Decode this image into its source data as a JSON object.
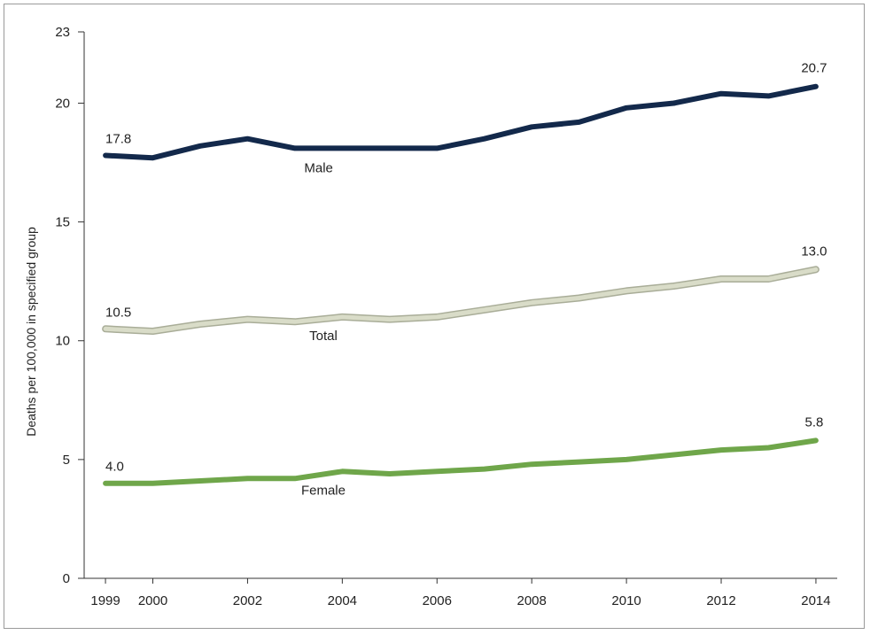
{
  "chart_data": {
    "type": "line",
    "xlabel": "",
    "ylabel": "Deaths per 100,000 in specified group",
    "x": [
      1999,
      2000,
      2001,
      2002,
      2003,
      2004,
      2005,
      2006,
      2007,
      2008,
      2009,
      2010,
      2011,
      2012,
      2013,
      2014
    ],
    "xticks": [
      "1999",
      "2000",
      "2002",
      "2004",
      "2006",
      "2008",
      "2010",
      "2012",
      "2014"
    ],
    "yticks": [
      "0",
      "5",
      "10",
      "15",
      "20",
      "23"
    ],
    "ylim": [
      0,
      23
    ],
    "grid": false,
    "series": [
      {
        "name": "Male",
        "color": "#13294b",
        "values": [
          17.8,
          17.7,
          18.2,
          18.5,
          18.1,
          18.1,
          18.1,
          18.1,
          18.5,
          19.0,
          19.2,
          19.8,
          20.0,
          20.4,
          20.3,
          20.7
        ],
        "start_label": "17.8",
        "end_label": "20.7"
      },
      {
        "name": "Total",
        "color": "#d9dcc8",
        "outline": "#a9ad98",
        "values": [
          10.5,
          10.4,
          10.7,
          10.9,
          10.8,
          11.0,
          10.9,
          11.0,
          11.3,
          11.6,
          11.8,
          12.1,
          12.3,
          12.6,
          12.6,
          13.0
        ],
        "start_label": "10.5",
        "end_label": "13.0"
      },
      {
        "name": "Female",
        "color": "#6fa64a",
        "values": [
          4.0,
          4.0,
          4.1,
          4.2,
          4.2,
          4.5,
          4.4,
          4.5,
          4.6,
          4.8,
          4.9,
          5.0,
          5.2,
          5.4,
          5.5,
          5.8
        ],
        "start_label": "4.0",
        "end_label": "5.8"
      }
    ]
  }
}
